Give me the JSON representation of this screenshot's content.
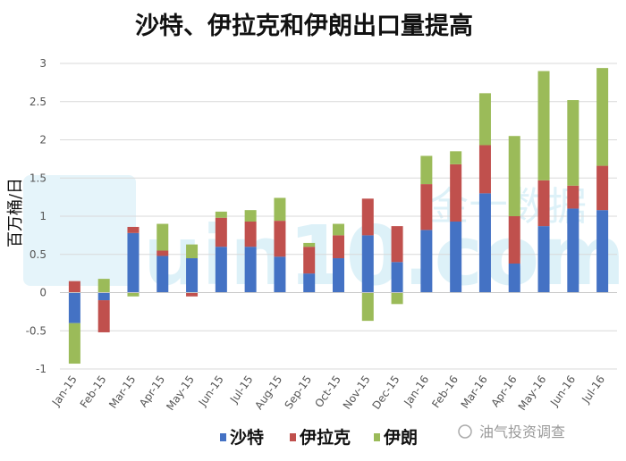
{
  "watermark_text": "油气投资调查",
  "brand_watermark": {
    "text": "uin10.com",
    "cn_text": "金十数据"
  },
  "colors": {
    "saudi": "#4472C4",
    "iraq": "#C0504D",
    "iran": "#9BBB59",
    "grid": "#d9d9d9"
  },
  "chart_data": {
    "type": "bar",
    "stacked": true,
    "title": "沙特、伊拉克和伊朗出口量提高",
    "xlabel": "",
    "ylabel": "百万桶/日",
    "ylim": [
      -1,
      3
    ],
    "yticks": [
      "3",
      "2.5",
      "2",
      "1.5",
      "1",
      "0.5",
      "0",
      "-0.5",
      "-1"
    ],
    "ytick_values": [
      3,
      2.5,
      2,
      1.5,
      1,
      0.5,
      0,
      -0.5,
      -1
    ],
    "grid": true,
    "legend_position": "bottom",
    "categories": [
      "Jan-15",
      "Feb-15",
      "Mar-15",
      "Apr-15",
      "May-15",
      "Jun-15",
      "Jul-15",
      "Aug-15",
      "Sep-15",
      "Oct-15",
      "Nov-15",
      "Dec-15",
      "Jan-16",
      "Feb-16",
      "Mar-16",
      "Apr-16",
      "May-16",
      "Jun-16",
      "Jul-16"
    ],
    "series": [
      {
        "name": "沙特",
        "values": [
          -0.4,
          -0.1,
          0.78,
          0.48,
          0.45,
          0.6,
          0.6,
          0.47,
          0.25,
          0.45,
          0.75,
          0.4,
          0.82,
          0.93,
          1.3,
          0.38,
          0.87,
          1.1,
          1.08
        ]
      },
      {
        "name": "伊拉克",
        "values": [
          0.15,
          -0.42,
          0.08,
          0.07,
          -0.05,
          0.38,
          0.33,
          0.47,
          0.35,
          0.3,
          0.48,
          0.47,
          0.6,
          0.75,
          0.63,
          0.62,
          0.6,
          0.3,
          0.58
        ]
      },
      {
        "name": "伊朗",
        "values": [
          -0.53,
          0.18,
          -0.05,
          0.35,
          0.18,
          0.08,
          0.15,
          0.3,
          0.05,
          0.15,
          -0.37,
          -0.15,
          0.37,
          0.17,
          0.68,
          1.05,
          1.43,
          1.12,
          1.28
        ]
      }
    ]
  }
}
